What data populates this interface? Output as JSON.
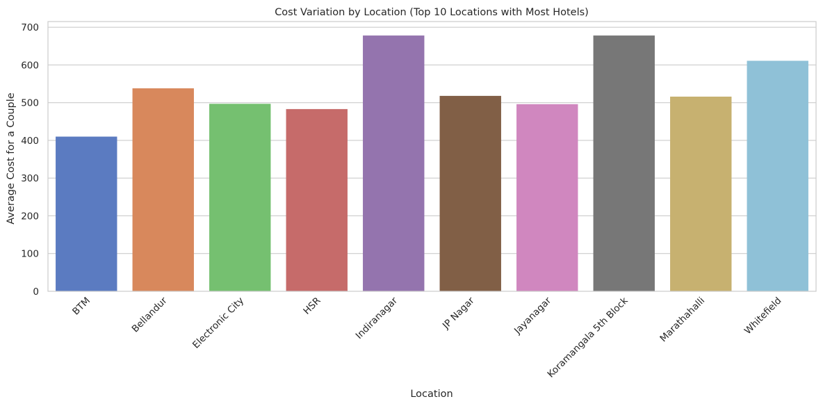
{
  "chart_data": {
    "type": "bar",
    "title": "Cost Variation by Location (Top 10 Locations with Most Hotels)",
    "xlabel": "Location",
    "ylabel": "Average Cost for a Couple",
    "categories": [
      "BTM",
      "Bellandur",
      "Electronic City",
      "HSR",
      "Indiranagar",
      "JP Nagar",
      "Jayanagar",
      "Koramangala 5th Block",
      "Marathahalli",
      "Whitefield"
    ],
    "values": [
      410,
      538,
      497,
      483,
      678,
      518,
      496,
      678,
      516,
      611
    ],
    "colors": [
      "#5b7bc1",
      "#d8885c",
      "#75c070",
      "#c66b6a",
      "#9474ae",
      "#815f46",
      "#d087bf",
      "#777777",
      "#c7b170",
      "#8fc1d7"
    ],
    "ylim": [
      0,
      715
    ],
    "yticks": [
      0,
      100,
      200,
      300,
      400,
      500,
      600,
      700
    ],
    "grid": "horizontal",
    "legend": "none"
  }
}
